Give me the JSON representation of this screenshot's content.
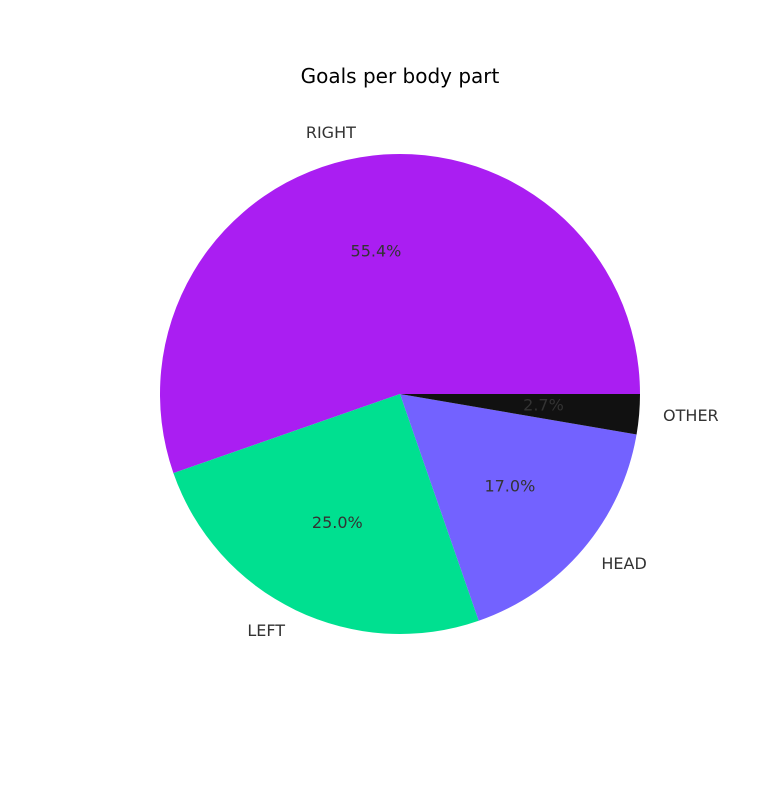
{
  "chart_data": {
    "type": "pie",
    "title": "Goals per body part",
    "categories": [
      "RIGHT",
      "LEFT",
      "HEAD",
      "OTHER"
    ],
    "values": [
      55.4,
      25.0,
      17.0,
      2.7
    ],
    "value_labels": [
      "55.4%",
      "25.0%",
      "17.0%",
      "2.7%"
    ],
    "colors": [
      "#aa1ef2",
      "#00e090",
      "#7362ff",
      "#111111"
    ],
    "start_angle_deg": 0,
    "direction": "counterclockwise"
  }
}
